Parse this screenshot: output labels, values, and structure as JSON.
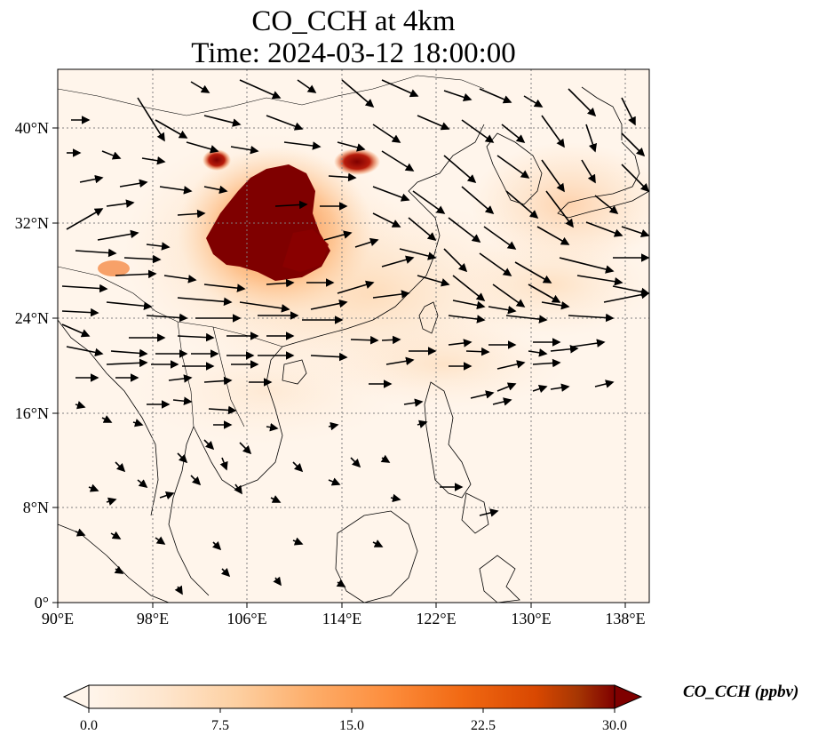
{
  "title": {
    "line1": "CO_CCH at 4km",
    "line2": "Time: 2024-03-12 18:00:00"
  },
  "map": {
    "region": "East and Southeast Asia",
    "lon_range": [
      90,
      140
    ],
    "lat_range": [
      0,
      45
    ],
    "x_ticks": [
      "90°E",
      "98°E",
      "106°E",
      "114°E",
      "122°E",
      "130°E",
      "138°E"
    ],
    "y_ticks": [
      "0°",
      "8°N",
      "16°N",
      "24°N",
      "32°N",
      "40°N"
    ],
    "gridlines": "dotted",
    "background_color": "#fff5eb",
    "overlay": "wind vectors (black arrows)"
  },
  "colorbar": {
    "label": "CO_CCH (ppbv)",
    "ticks": [
      "0.0",
      "7.5",
      "15.0",
      "22.5",
      "30.0"
    ],
    "range": [
      0,
      30
    ],
    "extend": "both",
    "colormap": [
      "#fff5eb",
      "#fdd0a2",
      "#fdae6b",
      "#fd8d3c",
      "#f16913",
      "#d94801",
      "#a63603",
      "#7f0000"
    ]
  },
  "plumes": [
    {
      "name": "central China core",
      "level": "≥30 ppbv",
      "lon_center": 107.5,
      "lat_center": 31.5
    },
    {
      "name": "north China spot",
      "level": "≥30 ppbv",
      "lon_center": 115.5,
      "lat_center": 37.0
    },
    {
      "name": "northwest spot",
      "level": "≥30 ppbv",
      "lon_center": 103.5,
      "lat_center": 37.5
    },
    {
      "name": "Myanmar/India spot",
      "level": "~15 ppbv",
      "lon_center": 94.5,
      "lat_center": 28.5
    },
    {
      "name": "Japan/Korea haze",
      "level": "~5-10 ppbv",
      "lon_center": 135,
      "lat_center": 33
    }
  ]
}
